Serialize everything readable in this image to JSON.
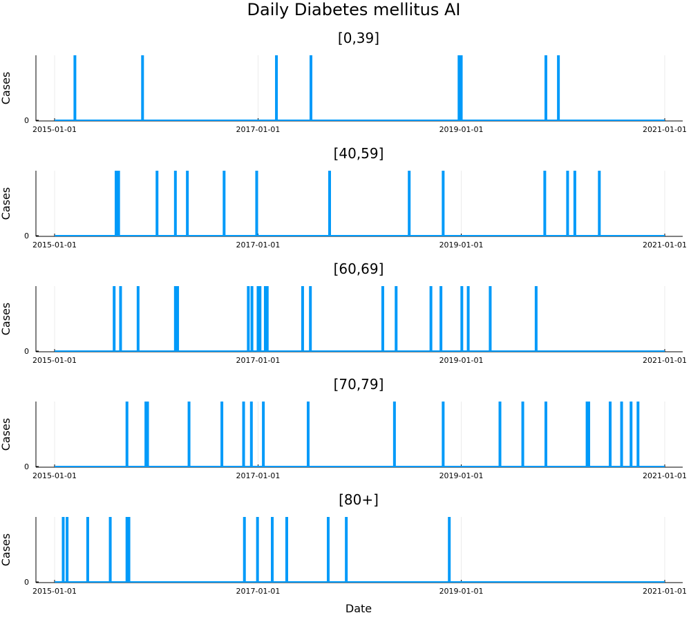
{
  "chart_data": {
    "type": "line",
    "title": "Daily Diabetes mellitus AI",
    "xlabel": "Date",
    "ylabel": "Cases",
    "x_range": [
      "2015-01-01",
      "2021-01-01"
    ],
    "x_ticks": [
      "2015-01-01",
      "2017-01-01",
      "2019-01-01",
      "2021-01-01"
    ],
    "y_ticks": [
      0
    ],
    "y_range": [
      0,
      1
    ],
    "grid": true,
    "line_color": "#009af9",
    "panels": [
      {
        "title": "[0,39]",
        "spikes": [
          "2015-03-15",
          "2015-11-13",
          "2017-03-08",
          "2017-07-10",
          "2018-12-24",
          "2019-01-01",
          "2019-11-01",
          "2019-12-16"
        ]
      },
      {
        "title": "[40,59]",
        "spikes": [
          "2015-08-10",
          "2015-08-19",
          "2016-01-04",
          "2016-03-10",
          "2016-04-22",
          "2016-09-01",
          "2016-12-27",
          "2017-09-15",
          "2018-06-28",
          "2018-10-28",
          "2019-10-28",
          "2020-01-18",
          "2020-02-13",
          "2020-05-11"
        ]
      },
      {
        "title": "[60,69]",
        "spikes": [
          "2015-08-03",
          "2015-08-26",
          "2015-10-28",
          "2016-03-10",
          "2016-03-18",
          "2016-11-27",
          "2016-12-10",
          "2017-01-01",
          "2017-01-08",
          "2017-01-27",
          "2017-02-03",
          "2017-06-10",
          "2017-07-08",
          "2018-03-25",
          "2018-05-12",
          "2018-09-14",
          "2018-10-20",
          "2019-01-03",
          "2019-01-26",
          "2019-04-15",
          "2019-09-27"
        ]
      },
      {
        "title": "[70,79]",
        "spikes": [
          "2015-09-18",
          "2015-11-25",
          "2015-12-01",
          "2016-04-28",
          "2016-08-24",
          "2016-11-10",
          "2016-12-08",
          "2017-01-20",
          "2017-06-30",
          "2018-05-06",
          "2018-10-28",
          "2019-05-20",
          "2019-08-10",
          "2019-11-01",
          "2020-03-28",
          "2020-04-03",
          "2020-06-19",
          "2020-07-30",
          "2020-09-02",
          "2020-09-27"
        ]
      },
      {
        "title": "[80+]",
        "spikes": [
          "2015-02-01",
          "2015-02-15",
          "2015-04-30",
          "2015-07-20",
          "2015-09-18",
          "2015-09-25",
          "2016-11-13",
          "2016-12-30",
          "2017-02-21",
          "2017-04-14",
          "2017-09-10",
          "2017-11-14",
          "2018-11-19"
        ]
      }
    ]
  }
}
